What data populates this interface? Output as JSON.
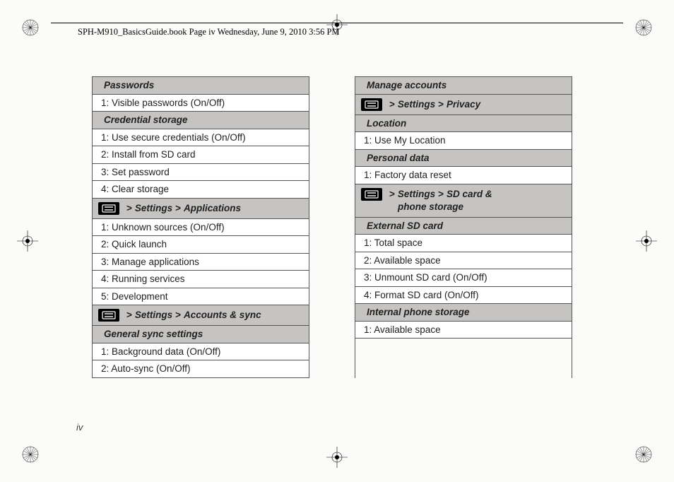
{
  "header": {
    "text": "SPH-M910_BasicsGuide.book  Page iv  Wednesday, June 9, 2010  3:56 PM"
  },
  "page_number": "iv",
  "colors": {
    "header_bg": "#c6c4c2",
    "row_bg": "#ffffff",
    "border": "#555555",
    "text": "#202020",
    "page_bg": "#fbfbfa"
  },
  "left_column": [
    {
      "type": "header",
      "text": "Passwords"
    },
    {
      "type": "item",
      "text": "1: Visible passwords (On/Off)"
    },
    {
      "type": "header",
      "text": "Credential storage"
    },
    {
      "type": "item",
      "text": "1: Use secure credentials (On/Off)"
    },
    {
      "type": "item",
      "text": "2: Install from SD card"
    },
    {
      "type": "item",
      "text": "3: Set password"
    },
    {
      "type": "item",
      "text": "4: Clear storage"
    },
    {
      "type": "nav",
      "parts": [
        "Settings",
        "Applications"
      ]
    },
    {
      "type": "item",
      "text": "1: Unknown sources (On/Off)"
    },
    {
      "type": "item",
      "text": "2: Quick launch"
    },
    {
      "type": "item",
      "text": "3: Manage applications"
    },
    {
      "type": "item",
      "text": "4: Running services"
    },
    {
      "type": "item",
      "text": "5: Development"
    },
    {
      "type": "nav",
      "parts": [
        "Settings",
        "Accounts & sync"
      ]
    },
    {
      "type": "header",
      "text": "General sync settings"
    },
    {
      "type": "item",
      "text": "1: Background data (On/Off)"
    },
    {
      "type": "item",
      "text": "2: Auto-sync (On/Off)"
    }
  ],
  "right_column": [
    {
      "type": "header",
      "text": "Manage accounts"
    },
    {
      "type": "nav",
      "parts": [
        "Settings",
        "Privacy"
      ]
    },
    {
      "type": "header",
      "text": "Location"
    },
    {
      "type": "item",
      "text": "1: Use My Location"
    },
    {
      "type": "header",
      "text": "Personal data"
    },
    {
      "type": "item",
      "text": "1: Factory data reset"
    },
    {
      "type": "nav2",
      "line1_parts": [
        "Settings",
        "SD card &"
      ],
      "line2": "phone storage"
    },
    {
      "type": "header",
      "text": "External SD card"
    },
    {
      "type": "item",
      "text": "1: Total space"
    },
    {
      "type": "item",
      "text": "2: Available space"
    },
    {
      "type": "item",
      "text": "3: Unmount SD card (On/Off)"
    },
    {
      "type": "item",
      "text": "4: Format SD card (On/Off)"
    },
    {
      "type": "header",
      "text": "Internal phone storage"
    },
    {
      "type": "item",
      "text": "1: Available space"
    }
  ]
}
